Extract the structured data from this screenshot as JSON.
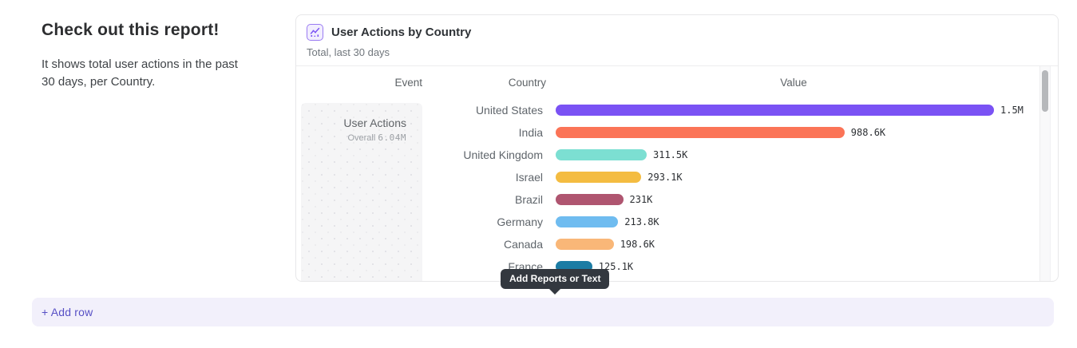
{
  "intro": {
    "title": "Check out this report!",
    "description": "It shows total user actions in the past 30 days, per Country."
  },
  "card": {
    "icon": "line-chart-icon",
    "title": "User Actions by Country",
    "subtitle": "Total, last 30 days",
    "columns": [
      "Event",
      "Country",
      "Value"
    ],
    "event_cell": {
      "name": "User Actions",
      "overall_label": "Overall",
      "overall_value": "6.04M"
    }
  },
  "chart_data": {
    "type": "bar",
    "orientation": "horizontal",
    "title": "User Actions by Country",
    "subtitle": "Total, last 30 days",
    "event": "User Actions",
    "overall_total": "6.04M",
    "categories": [
      "United States",
      "India",
      "United Kingdom",
      "Israel",
      "Brazil",
      "Germany",
      "Canada",
      "France"
    ],
    "values": [
      1500000,
      988600,
      311500,
      293100,
      231000,
      213800,
      198600,
      125100
    ],
    "value_labels": [
      "1.5M",
      "988.6K",
      "311.5K",
      "293.1K",
      "231K",
      "213.8K",
      "198.6K",
      "125.1K"
    ],
    "colors": [
      "#7A52F4",
      "#FB7457",
      "#7CDFD2",
      "#F4BC41",
      "#AF5570",
      "#6FBCF0",
      "#F9B778",
      "#1C7CA4"
    ],
    "xlim": [
      0,
      1500000
    ],
    "grid": false,
    "legend": "none"
  },
  "tooltip": {
    "label": "Add Reports or Text"
  },
  "footer": {
    "add_row_label": "+ Add row"
  },
  "colors": {
    "accent_purple": "#7A52F4",
    "add_row_bg": "#f2f0fb",
    "add_row_text": "#5750c5",
    "tooltip_bg": "#33383f",
    "card_border": "#e7e7e9"
  }
}
